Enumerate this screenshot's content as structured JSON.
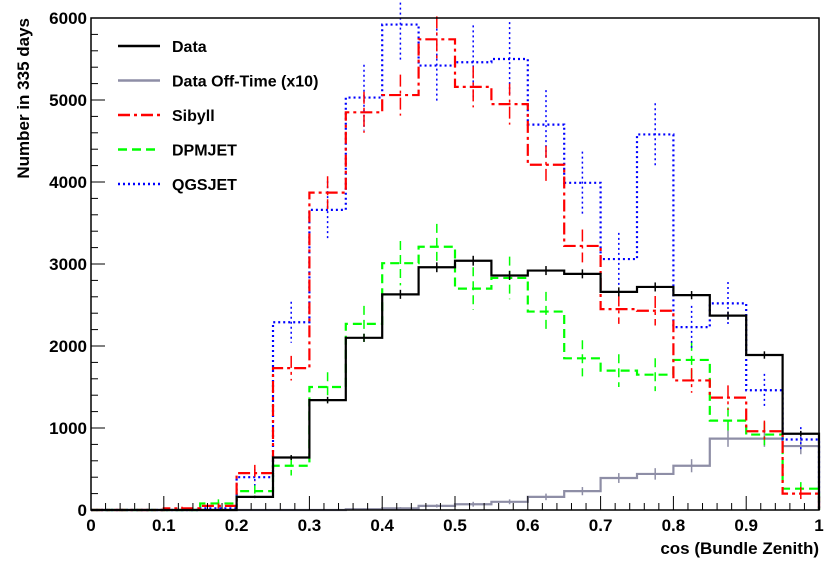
{
  "chart_data": {
    "type": "line",
    "title": "",
    "xlabel": "cos (Bundle Zenith)",
    "ylabel": "Number in 335 days",
    "xlim": [
      0,
      1
    ],
    "ylim": [
      0,
      6000
    ],
    "xticks": [
      "0",
      "0.1",
      "0.2",
      "0.3",
      "0.4",
      "0.5",
      "0.6",
      "0.7",
      "0.8",
      "0.9",
      "1"
    ],
    "yticks": [
      "0",
      "1000",
      "2000",
      "3000",
      "4000",
      "5000",
      "6000"
    ],
    "bin_width": 0.05,
    "legend_position": "top-left",
    "series": [
      {
        "name": "Data",
        "color": "#000000",
        "style": "solid",
        "x": [
          0.15,
          0.2,
          0.25,
          0.3,
          0.35,
          0.4,
          0.45,
          0.5,
          0.55,
          0.6,
          0.65,
          0.7,
          0.75,
          0.8,
          0.85,
          0.9,
          0.95
        ],
        "values": [
          0,
          160,
          640,
          1340,
          2100,
          2630,
          2960,
          3040,
          2860,
          2920,
          2880,
          2660,
          2720,
          2620,
          2370,
          1890,
          930
        ],
        "errors": [
          0,
          15,
          30,
          40,
          50,
          55,
          60,
          60,
          55,
          55,
          55,
          55,
          55,
          50,
          50,
          45,
          35
        ]
      },
      {
        "name": "Data Off-Time (x10)",
        "color": "#8e8ea6",
        "style": "solid",
        "x": [
          0.1,
          0.15,
          0.2,
          0.25,
          0.3,
          0.35,
          0.4,
          0.45,
          0.5,
          0.55,
          0.6,
          0.65,
          0.7,
          0.75,
          0.8,
          0.85,
          0.9,
          0.95
        ],
        "values": [
          0,
          0,
          0,
          0,
          0,
          10,
          20,
          50,
          70,
          100,
          160,
          230,
          390,
          440,
          540,
          870,
          870,
          780
        ],
        "errors": [
          0,
          0,
          0,
          0,
          0,
          10,
          15,
          20,
          30,
          30,
          40,
          50,
          60,
          70,
          80,
          100,
          100,
          100
        ]
      },
      {
        "name": "Sibyll",
        "color": "#ff0000",
        "style": "dashdot",
        "x": [
          0.1,
          0.15,
          0.2,
          0.25,
          0.3,
          0.35,
          0.4,
          0.45,
          0.5,
          0.55,
          0.6,
          0.65,
          0.7,
          0.75,
          0.8,
          0.85,
          0.9,
          0.95
        ],
        "values": [
          20,
          50,
          450,
          1730,
          3870,
          4850,
          5060,
          5740,
          5160,
          4950,
          4210,
          3220,
          2450,
          2430,
          1580,
          1370,
          960,
          200
        ],
        "errors": [
          20,
          30,
          100,
          150,
          200,
          250,
          250,
          280,
          250,
          250,
          230,
          200,
          180,
          180,
          150,
          150,
          130,
          80
        ]
      },
      {
        "name": "DPMJET",
        "color": "#00ff00",
        "style": "dashed",
        "x": [
          0.1,
          0.15,
          0.2,
          0.25,
          0.3,
          0.35,
          0.4,
          0.45,
          0.5,
          0.55,
          0.6,
          0.65,
          0.7,
          0.75,
          0.8,
          0.85,
          0.9,
          0.95
        ],
        "values": [
          0,
          80,
          230,
          540,
          1500,
          2270,
          3010,
          3210,
          2700,
          2830,
          2420,
          1850,
          1700,
          1650,
          1830,
          1090,
          920,
          260
        ],
        "errors": [
          0,
          50,
          80,
          120,
          180,
          220,
          270,
          280,
          260,
          260,
          240,
          220,
          200,
          200,
          220,
          160,
          150,
          80
        ]
      },
      {
        "name": "QGSJET",
        "color": "#0000ff",
        "style": "dotted",
        "x": [
          0.15,
          0.2,
          0.25,
          0.3,
          0.35,
          0.4,
          0.45,
          0.5,
          0.55,
          0.6,
          0.65,
          0.7,
          0.75,
          0.8,
          0.85,
          0.9,
          0.95
        ],
        "values": [
          20,
          400,
          2290,
          3660,
          5030,
          5920,
          5420,
          5460,
          5500,
          4700,
          3990,
          3060,
          4580,
          2230,
          2520,
          1460,
          860
        ],
        "errors": [
          20,
          100,
          250,
          350,
          400,
          450,
          450,
          450,
          450,
          420,
          380,
          320,
          380,
          260,
          260,
          200,
          150
        ]
      }
    ]
  }
}
